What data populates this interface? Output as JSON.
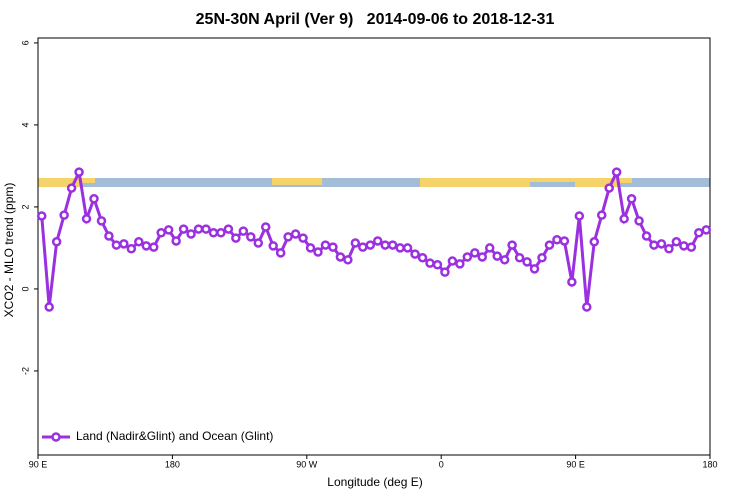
{
  "chart_data": {
    "type": "line",
    "title": "25N-30N April (Ver 9)   2014-09-06 to 2018-12-31",
    "x_label": "Longitude (deg E)",
    "y_label": "XCO2 - MLO trend (ppm)",
    "x": [
      92.5,
      97.5,
      102.5,
      107.5,
      112.5,
      117.5,
      122.5,
      127.5,
      132.5,
      137.5,
      142.5,
      147.5,
      152.5,
      157.5,
      162.5,
      167.5,
      172.5,
      177.5,
      182.5,
      187.5,
      192.5,
      197.5,
      202.5,
      207.5,
      212.5,
      217.5,
      222.5,
      227.5,
      232.5,
      237.5,
      242.5,
      247.5,
      252.5,
      257.5,
      262.5,
      267.5,
      272.5,
      277.5,
      282.5,
      287.5,
      292.5,
      297.5,
      302.5,
      307.5,
      312.5,
      317.5,
      322.5,
      327.5,
      332.5,
      337.5,
      342.5,
      347.5,
      352.5,
      357.5,
      362.5,
      367.5,
      372.5,
      377.5,
      382.5,
      387.5,
      392.5,
      397.5,
      402.5,
      407.5,
      412.5,
      417.5,
      422.5,
      427.5,
      432.5,
      437.5,
      442.5,
      447.5,
      452.5,
      457.5,
      462.5,
      467.5,
      472.5,
      477.5,
      482.5,
      487.5,
      492.5,
      497.5,
      502.5,
      507.5,
      512.5,
      517.5,
      522.5,
      527.5,
      532.5,
      537.5
    ],
    "series": [
      {
        "name": "Land (Nadir&Glint) and Ocean (Glint)",
        "color": "#9b30e0",
        "values": [
          1.78,
          -0.44,
          1.15,
          1.8,
          2.46,
          2.85,
          1.71,
          2.2,
          1.66,
          1.29,
          1.07,
          1.1,
          0.98,
          1.15,
          1.05,
          1.02,
          1.37,
          1.44,
          1.17,
          1.46,
          1.34,
          1.46,
          1.46,
          1.37,
          1.37,
          1.46,
          1.24,
          1.41,
          1.27,
          1.12,
          1.51,
          1.05,
          0.88,
          1.27,
          1.34,
          1.24,
          1.0,
          0.9,
          1.07,
          1.02,
          0.78,
          0.71,
          1.12,
          1.02,
          1.07,
          1.17,
          1.07,
          1.07,
          1.0,
          1.0,
          0.85,
          0.76,
          0.63,
          0.59,
          0.41,
          0.68,
          0.61,
          0.78,
          0.88,
          0.78,
          1.0,
          0.8,
          0.71,
          1.07,
          0.76,
          0.66,
          0.49,
          0.76,
          1.07,
          1.2,
          1.17,
          0.17,
          1.78,
          -0.44,
          1.15,
          1.8,
          2.46,
          2.85,
          1.71,
          2.2,
          1.66,
          1.29,
          1.07,
          1.1,
          0.98,
          1.15,
          1.05,
          1.02,
          1.37,
          1.44
        ]
      }
    ],
    "xlim": [
      90,
      540
    ],
    "xticks": [
      {
        "value": 90,
        "label": "90 E"
      },
      180,
      {
        "value": 270,
        "label": "90 W"
      },
      {
        "value": 360,
        "label": "0"
      },
      {
        "value": 450,
        "label": "90 E"
      },
      {
        "value": 540,
        "label": "180"
      }
    ],
    "ylim": [
      -4.05,
      6.12
    ],
    "yticks": [
      -2,
      0,
      2,
      4,
      6
    ],
    "legend": "bottom-left"
  }
}
